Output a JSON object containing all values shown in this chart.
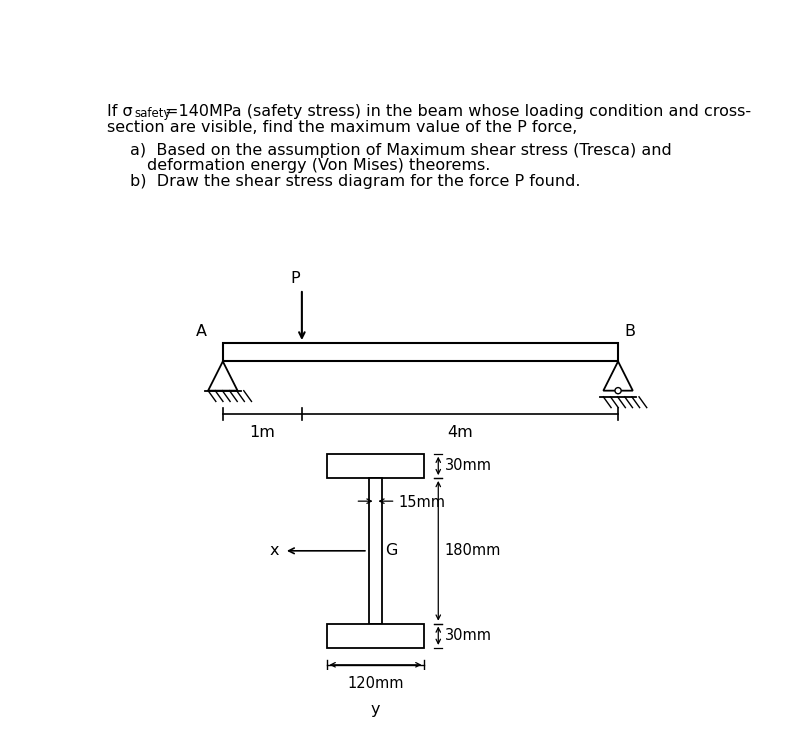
{
  "text_color": "#000000",
  "bg_color": "#ffffff",
  "label_A": "A",
  "label_B": "B",
  "label_P": "P",
  "dim_1m_label": "1m",
  "dim_4m_label": "4m",
  "dim_30mm_top": "30mm",
  "dim_180mm": "180mm",
  "dim_30mm_bot": "30mm",
  "dim_120mm": "120mm",
  "dim_15mm": "15mm",
  "label_G": "G",
  "label_x": "x",
  "label_y": "y",
  "sigma_sub": "safety",
  "fs_main": 11.5,
  "fs_small": 8.5,
  "fs_dim": 10.5
}
